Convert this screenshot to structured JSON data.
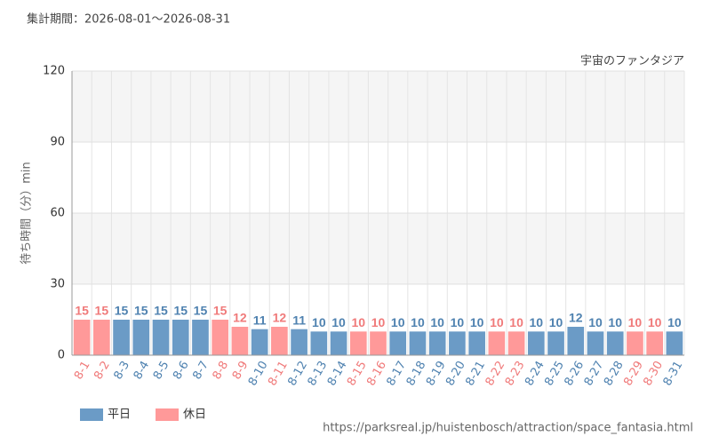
{
  "chart_data": {
    "type": "bar",
    "subtitle": "集計期間：2026-08-01～2026-08-31",
    "title": "宇宙のファンタジア",
    "y_label": "待ち時間（分）min",
    "source": "https://parksreal.jp/huistenbosch/attraction/space_fantasia.html",
    "categories": [
      "8-1",
      "8-2",
      "8-3",
      "8-4",
      "8-5",
      "8-6",
      "8-7",
      "8-8",
      "8-9",
      "8-10",
      "8-11",
      "8-12",
      "8-13",
      "8-14",
      "8-15",
      "8-16",
      "8-17",
      "8-18",
      "8-19",
      "8-20",
      "8-21",
      "8-22",
      "8-23",
      "8-24",
      "8-25",
      "8-26",
      "8-27",
      "8-28",
      "8-29",
      "8-30",
      "8-31"
    ],
    "series": [
      {
        "name": "平日",
        "color": "#6b9bc6",
        "label_color": "#4f82b0",
        "values": [
          null,
          null,
          15,
          15,
          15,
          15,
          15,
          null,
          null,
          11,
          null,
          11,
          10,
          10,
          null,
          null,
          10,
          10,
          10,
          10,
          10,
          null,
          null,
          10,
          10,
          12,
          10,
          10,
          null,
          null,
          10
        ]
      },
      {
        "name": "休日",
        "color": "#ff9999",
        "label_color": "#f07a7a",
        "values": [
          15,
          15,
          null,
          null,
          null,
          null,
          null,
          15,
          12,
          null,
          12,
          null,
          null,
          null,
          10,
          10,
          null,
          null,
          null,
          null,
          null,
          10,
          10,
          null,
          null,
          null,
          null,
          null,
          10,
          10,
          null
        ]
      }
    ],
    "ylim": [
      0,
      120
    ],
    "yticks": [
      0,
      30,
      60,
      90,
      120
    ],
    "grid": true
  }
}
